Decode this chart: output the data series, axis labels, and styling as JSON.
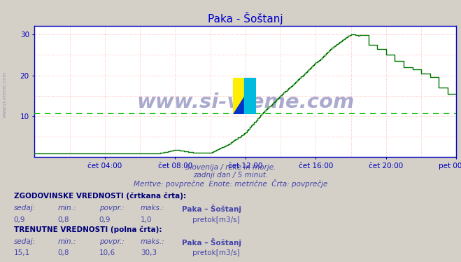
{
  "title": "Paka - Šoštanj",
  "bg_color": "#d4d0c8",
  "plot_bg_color": "#ffffff",
  "grid_color": "#ffb0b0",
  "line_color": "#007700",
  "avg_line_color": "#00bb00",
  "avg_line_value": 10.6,
  "axis_color": "#0000bb",
  "title_color": "#0000cc",
  "subtitle_color": "#4444aa",
  "watermark_text": "www.si-vreme.com",
  "subtitle1": "Slovenija / reke in morje.",
  "subtitle2": "zadnji dan / 5 minut.",
  "subtitle3": "Meritve: povprečne  Enote: metrične  Črta: povprečje",
  "hist_sedaj": "0,9",
  "hist_min": "0,8",
  "hist_povpr": "0,9",
  "hist_maks": "1,0",
  "curr_sedaj": "15,1",
  "curr_min": "0,8",
  "curr_povpr": "10,6",
  "curr_maks": "30,3",
  "legend_label": "pretok[m3/s]",
  "legend_color": "#00cc00",
  "xlim_min": 0,
  "xlim_max": 288,
  "ylim_min": 0,
  "ylim_max": 32,
  "logo_colors": [
    "#ffee00",
    "#00bbdd",
    "#0033cc",
    "#00bbdd"
  ],
  "sidewater_color": "#9999bb",
  "arrow_color": "#cc0000"
}
